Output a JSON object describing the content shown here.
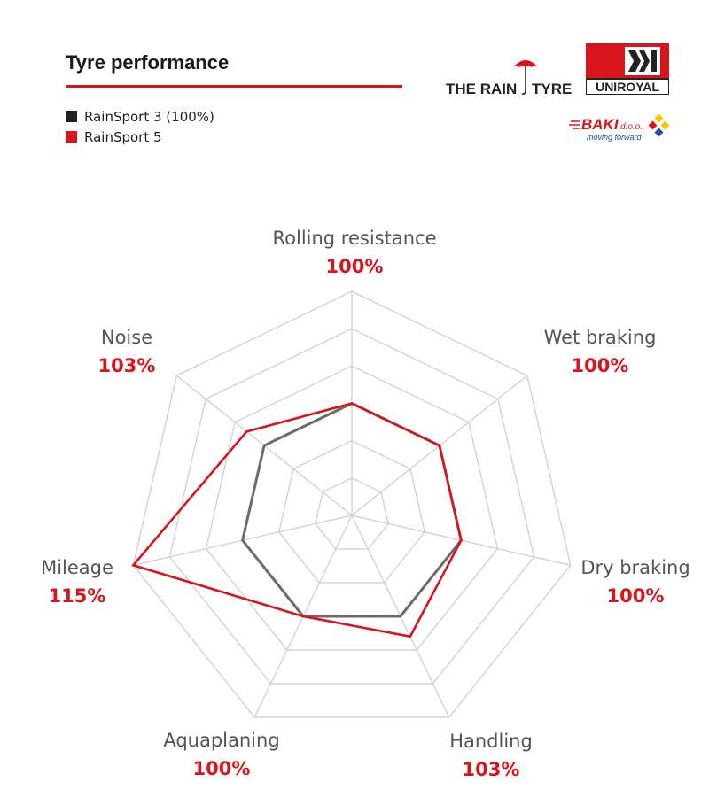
{
  "header": {
    "title": "Tyre performance"
  },
  "legend": [
    {
      "label": "RainSport 3 (100%)",
      "color": "#222222"
    },
    {
      "label": "RainSport 5",
      "color": "#d9141b"
    }
  ],
  "logos": {
    "rain_tyre_text_left": "THE RAIN",
    "rain_tyre_text_right": "TYRE",
    "uniroyal_text": "UNIROYAL",
    "baki_name": "BAKI",
    "baki_suffix": "d.o.o.",
    "baki_tagline": "moving forward"
  },
  "chart_data": {
    "type": "radar",
    "title": "Tyre performance",
    "axes": [
      {
        "name": "Rolling resistance",
        "label": "100%"
      },
      {
        "name": "Wet braking",
        "label": "100%"
      },
      {
        "name": "Dry braking",
        "label": "100%"
      },
      {
        "name": "Handling",
        "label": "103%"
      },
      {
        "name": "Aquaplaning",
        "label": "100%"
      },
      {
        "name": "Mileage",
        "label": "115%"
      },
      {
        "name": "Noise",
        "label": "103%"
      }
    ],
    "series": [
      {
        "name": "RainSport 3 (100%)",
        "color": "#6b6b6b",
        "values": [
          100,
          100,
          100,
          100,
          100,
          100,
          100
        ]
      },
      {
        "name": "RainSport 5",
        "color": "#d9141b",
        "values": [
          100,
          100,
          100,
          103,
          100,
          115,
          103
        ]
      }
    ],
    "rlim": [
      85,
      115
    ],
    "rings": 6,
    "legend_position": "top-left"
  }
}
